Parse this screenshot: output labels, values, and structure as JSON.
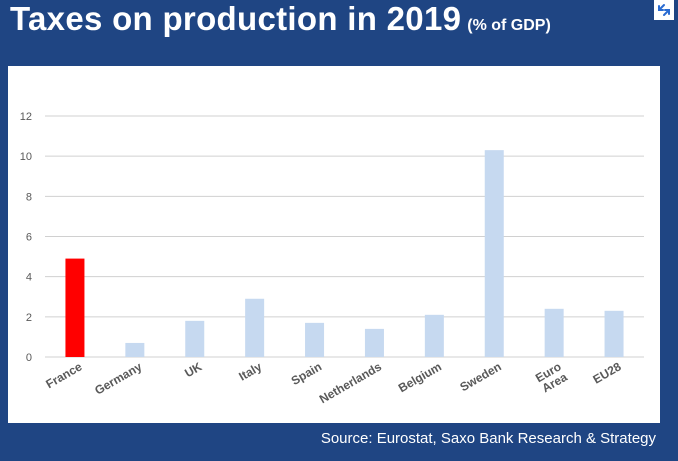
{
  "header": {
    "title": "Taxes on production in 2019",
    "subtitle": "(% of GDP)"
  },
  "footer": {
    "source": "Source: Eurostat, Saxo Bank Research & Strategy"
  },
  "icons": {
    "expand": "expand-arrows-icon"
  },
  "colors": {
    "background": "#1f4583",
    "highlight_bar": "#ff0000",
    "bar": "#c6d9f0",
    "grid": "#d0d0d0",
    "axis_text": "#595959"
  },
  "chart_data": {
    "type": "bar",
    "categories": [
      "France",
      "Germany",
      "UK",
      "Italy",
      "Spain",
      "Netherlands",
      "Belgium",
      "Sweden",
      [
        "Euro",
        "Area"
      ],
      "EU28"
    ],
    "values": [
      4.9,
      0.7,
      1.8,
      2.9,
      1.7,
      1.4,
      2.1,
      10.3,
      2.4,
      2.3
    ],
    "highlight_index": 0,
    "yticks": [
      0,
      2,
      4,
      6,
      8,
      10,
      12
    ],
    "ylim": [
      0,
      12
    ],
    "grid": true,
    "legend": false
  }
}
